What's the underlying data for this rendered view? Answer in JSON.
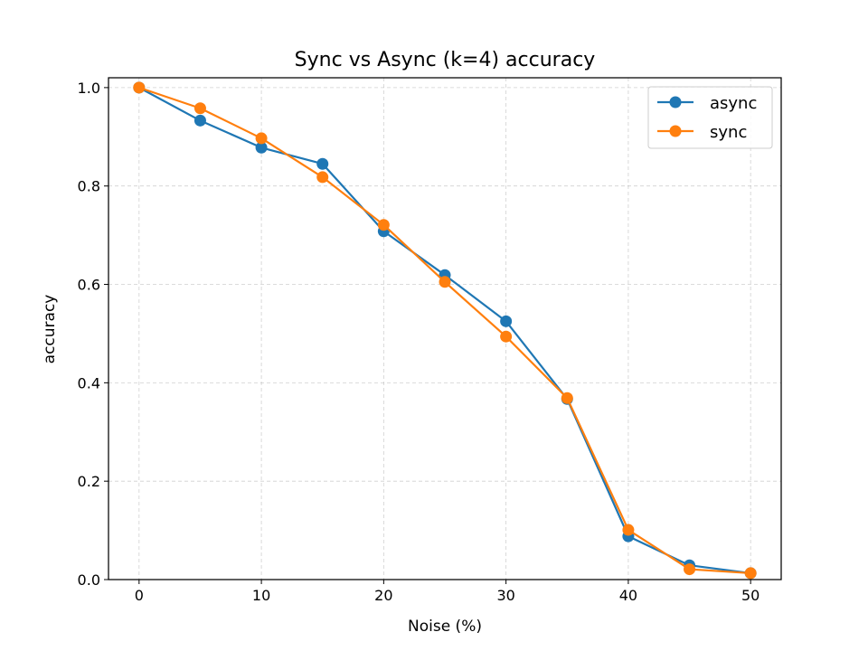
{
  "chart_data": {
    "type": "line",
    "title": "Sync vs Async (k=4) accuracy",
    "xlabel": "Noise (%)",
    "ylabel": "accuracy",
    "x": [
      0,
      5,
      10,
      15,
      20,
      25,
      30,
      35,
      40,
      45,
      50
    ],
    "xlim": [
      -2.5,
      52.5
    ],
    "ylim": [
      0.0,
      1.02
    ],
    "xticks": [
      0,
      10,
      20,
      30,
      40,
      50
    ],
    "yticks": [
      0.0,
      0.2,
      0.4,
      0.6,
      0.8,
      1.0
    ],
    "xtick_labels": [
      "0",
      "10",
      "20",
      "30",
      "40",
      "50"
    ],
    "ytick_labels": [
      "0.0",
      "0.2",
      "0.4",
      "0.6",
      "0.8",
      "1.0"
    ],
    "grid": true,
    "legend_position": "top-right",
    "series": [
      {
        "name": "async",
        "color": "#1f77b4",
        "values": [
          1.0,
          0.933,
          0.878,
          0.845,
          0.708,
          0.619,
          0.525,
          0.367,
          0.088,
          0.029,
          0.013
        ]
      },
      {
        "name": "sync",
        "color": "#ff7f0e",
        "values": [
          1.0,
          0.958,
          0.897,
          0.818,
          0.721,
          0.605,
          0.494,
          0.369,
          0.101,
          0.021,
          0.013
        ]
      }
    ]
  }
}
